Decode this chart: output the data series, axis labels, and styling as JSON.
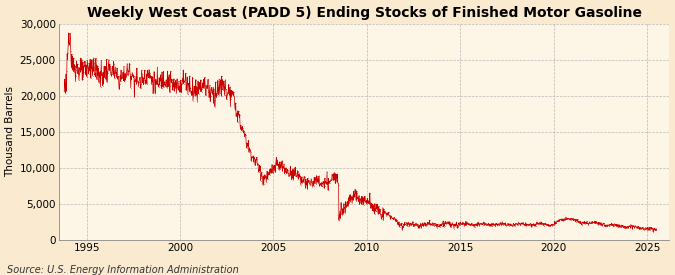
{
  "title": "Weekly West Coast (PADD 5) Ending Stocks of Finished Motor Gasoline",
  "ylabel": "Thousand Barrels",
  "source": "Source: U.S. Energy Information Administration",
  "line_color": "#cc0000",
  "background_color": "#faebd0",
  "plot_background_color": "#fdf5e6",
  "grid_color": "#aaaaaa",
  "ylim": [
    0,
    30000
  ],
  "yticks": [
    0,
    5000,
    10000,
    15000,
    20000,
    25000,
    30000
  ],
  "ytick_labels": [
    "0",
    "5,000",
    "10,000",
    "15,000",
    "20,000",
    "25,000",
    "30,000"
  ],
  "x_start_year": 1993.5,
  "x_end_year": 2026.2,
  "xticks": [
    1995,
    2000,
    2005,
    2010,
    2015,
    2020,
    2025
  ],
  "title_fontsize": 10,
  "label_fontsize": 7.5,
  "tick_fontsize": 7.5,
  "source_fontsize": 7
}
